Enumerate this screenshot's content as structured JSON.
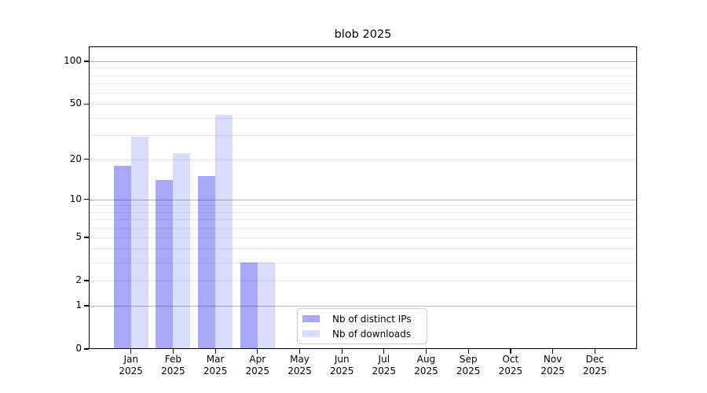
{
  "chart_data": {
    "type": "bar",
    "title": "blob 2025",
    "categories": [
      "Jan",
      "Feb",
      "Mar",
      "Apr",
      "May",
      "Jun",
      "Jul",
      "Aug",
      "Sep",
      "Oct",
      "Nov",
      "Dec"
    ],
    "x_sublabel": "2025",
    "series": [
      {
        "name": "Nb of distinct IPs",
        "color": "rgba(0,0,240,0.34)",
        "values": [
          18,
          14,
          15,
          3,
          0,
          0,
          0,
          0,
          0,
          0,
          0,
          0
        ]
      },
      {
        "name": "Nb of downloads",
        "color": "rgba(0,0,240,0.14)",
        "values": [
          29,
          22,
          42,
          3,
          0,
          0,
          0,
          0,
          0,
          0,
          0,
          0
        ]
      }
    ],
    "yscale": "log1p",
    "ylim": [
      0,
      100
    ],
    "y_tick_values": [
      0,
      1,
      2,
      5,
      10,
      20,
      50,
      100
    ],
    "y_tick_labels": [
      "0",
      "1",
      "2",
      "5",
      "10",
      "20",
      "50",
      "100"
    ],
    "y_major_gridlines": [
      1,
      10,
      100
    ],
    "y_minor_gridlines": [
      2,
      3,
      4,
      5,
      6,
      7,
      8,
      9,
      20,
      30,
      40,
      50,
      60,
      70,
      80,
      90
    ],
    "grid": true,
    "legend_position": "lower center",
    "colors": {
      "bar_distinct_ips_rendered": "#ababf8",
      "bar_downloads_rendered": "#dcdcfa",
      "grid_major": "#b4b4b4",
      "grid_minor": "#e7e7e7",
      "axis": "#000000",
      "legend_border": "#cccccc",
      "background": "#ffffff"
    }
  }
}
